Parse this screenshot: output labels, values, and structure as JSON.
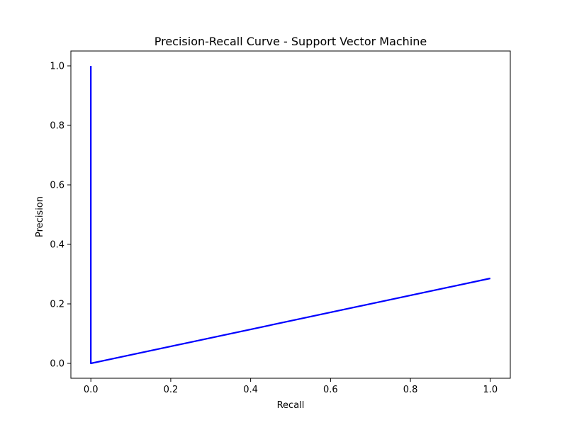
{
  "chart_data": {
    "type": "line",
    "title": "Precision-Recall Curve - Support Vector Machine",
    "xlabel": "Recall",
    "ylabel": "Precision",
    "xlim": [
      -0.05,
      1.05
    ],
    "ylim": [
      -0.05,
      1.05
    ],
    "xticks": [
      0.0,
      0.2,
      0.4,
      0.6,
      0.8,
      1.0
    ],
    "xtick_labels": [
      "0.0",
      "0.2",
      "0.4",
      "0.6",
      "0.8",
      "1.0"
    ],
    "yticks": [
      0.0,
      0.2,
      0.4,
      0.6,
      0.8,
      1.0
    ],
    "ytick_labels": [
      "0.0",
      "0.2",
      "0.4",
      "0.6",
      "0.8",
      "1.0"
    ],
    "grid": false,
    "series": [
      {
        "color": "#0000ff",
        "x": [
          0.0,
          0.0,
          1.0
        ],
        "y": [
          1.0,
          0.0,
          0.2857
        ]
      }
    ]
  }
}
